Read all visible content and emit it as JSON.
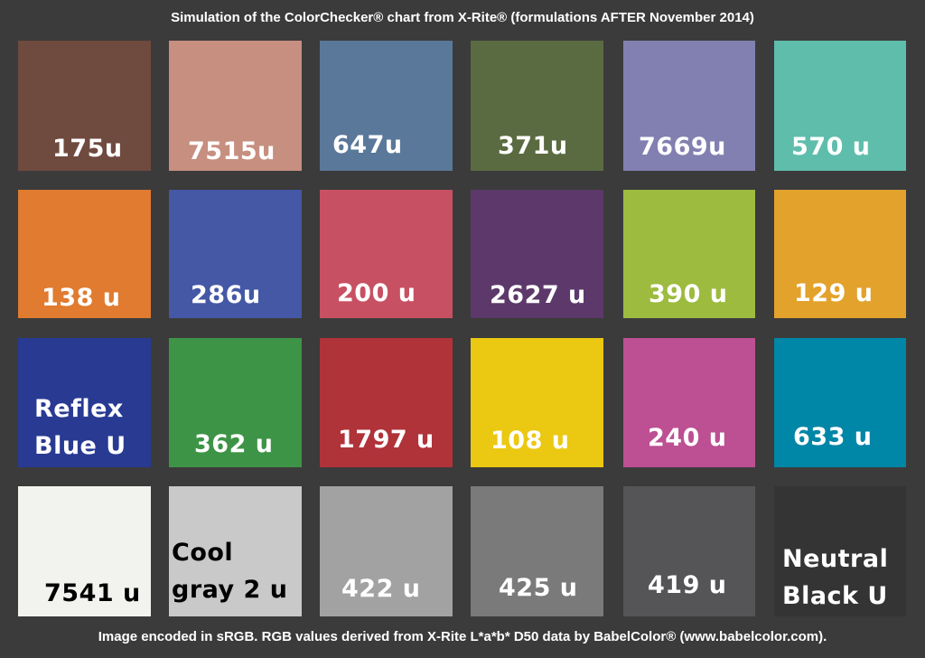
{
  "title": "Simulation of the ColorChecker® chart from X-Rite® (formulations AFTER November 2014)",
  "footer": "Image encoded in sRGB. RGB values derived from X-Rite L*a*b* D50 data by BabelColor® (www.babelcolor.com).",
  "background_color": "#3b3b3b",
  "patches": [
    {
      "label": [
        "175u"
      ],
      "color": "#6f4a3e",
      "text_color": "#ffffff"
    },
    {
      "label": [
        "7515u"
      ],
      "color": "#c68f80",
      "text_color": "#ffffff"
    },
    {
      "label": [
        "647u"
      ],
      "color": "#5a7899",
      "text_color": "#ffffff"
    },
    {
      "label": [
        "371u"
      ],
      "color": "#5b6b41",
      "text_color": "#ffffff"
    },
    {
      "label": [
        "7669u"
      ],
      "color": "#8280b0",
      "text_color": "#ffffff"
    },
    {
      "label": [
        "570 u"
      ],
      "color": "#5fbdac",
      "text_color": "#ffffff"
    },
    {
      "label": [
        "138 u"
      ],
      "color": "#e07b30",
      "text_color": "#ffffff"
    },
    {
      "label": [
        "286u"
      ],
      "color": "#4458a6",
      "text_color": "#ffffff"
    },
    {
      "label": [
        "200 u"
      ],
      "color": "#c75062",
      "text_color": "#ffffff"
    },
    {
      "label": [
        "2627 u"
      ],
      "color": "#5c396a",
      "text_color": "#ffffff"
    },
    {
      "label": [
        "390 u"
      ],
      "color": "#9dbb3e",
      "text_color": "#ffffff"
    },
    {
      "label": [
        "129 u"
      ],
      "color": "#e3a22c",
      "text_color": "#ffffff"
    },
    {
      "label": [
        "Reflex",
        "Blue U"
      ],
      "color": "#283a92",
      "text_color": "#ffffff"
    },
    {
      "label": [
        "362 u"
      ],
      "color": "#3d9446",
      "text_color": "#ffffff"
    },
    {
      "label": [
        "1797 u"
      ],
      "color": "#b0333a",
      "text_color": "#ffffff"
    },
    {
      "label": [
        "108 u"
      ],
      "color": "#ebc812",
      "text_color": "#ffffff"
    },
    {
      "label": [
        "240 u"
      ],
      "color": "#bd4f93",
      "text_color": "#ffffff"
    },
    {
      "label": [
        "633 u"
      ],
      "color": "#0086a6",
      "text_color": "#ffffff"
    },
    {
      "label": [
        "7541 u"
      ],
      "color": "#f2f2ee",
      "text_color": "#000000"
    },
    {
      "label": [
        "Cool",
        "gray 2 u"
      ],
      "color": "#c9c9c9",
      "text_color": "#000000"
    },
    {
      "label": [
        "422 u"
      ],
      "color": "#a1a2a1",
      "text_color": "#ffffff"
    },
    {
      "label": [
        "425 u"
      ],
      "color": "#7a7a7a",
      "text_color": "#ffffff"
    },
    {
      "label": [
        "419 u"
      ],
      "color": "#555557",
      "text_color": "#ffffff"
    },
    {
      "label": [
        "Neutral",
        "Black U"
      ],
      "color": "#343434",
      "text_color": "#ffffff"
    }
  ]
}
